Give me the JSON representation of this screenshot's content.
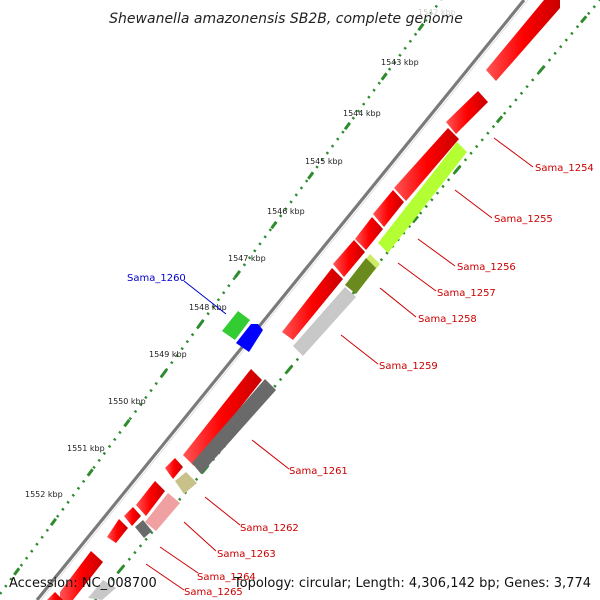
{
  "title": "Shewanella amazonensis SB2B, complete genome",
  "kbp_labels": [
    {
      "text": "1542 kbp",
      "faint": true
    },
    {
      "text": "1543 kbp"
    },
    {
      "text": "1544 kbp"
    },
    {
      "text": "1545 kbp"
    },
    {
      "text": "1546 kbp"
    },
    {
      "text": "1547 kbp"
    },
    {
      "text": "1548 kbp"
    },
    {
      "text": "1549 kbp"
    },
    {
      "text": "1550 kbp"
    },
    {
      "text": "1551 kbp"
    },
    {
      "text": "1552 kbp"
    }
  ],
  "genes": [
    {
      "label": "Sama_1254",
      "color": "#cc0000"
    },
    {
      "label": "Sama_1255",
      "color": "#cc0000"
    },
    {
      "label": "Sama_1256",
      "color": "#cc0000"
    },
    {
      "label": "Sama_1257",
      "color": "#cc0000"
    },
    {
      "label": "Sama_1258",
      "color": "#cc0000"
    },
    {
      "label": "Sama_1259",
      "color": "#cc0000"
    },
    {
      "label": "Sama_1260",
      "color": "#0000cc"
    },
    {
      "label": "Sama_1261",
      "color": "#cc0000"
    },
    {
      "label": "Sama_1262",
      "color": "#cc0000"
    },
    {
      "label": "Sama_1263",
      "color": "#cc0000"
    },
    {
      "label": "Sama_1264",
      "color": "#cc0000"
    },
    {
      "label": "Sama_1265",
      "color": "#cc0000"
    }
  ],
  "footer": {
    "accession": "Accession: NC_008700",
    "summary": "Topology: circular; Length: 4,306,142 bp; Genes: 3,774"
  }
}
